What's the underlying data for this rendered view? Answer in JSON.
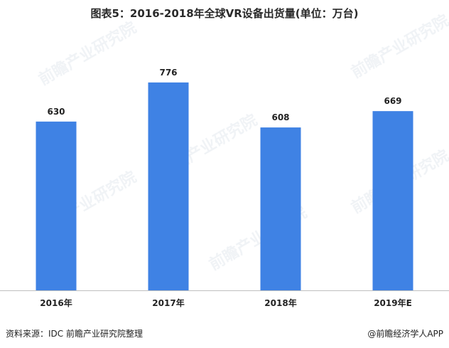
{
  "title": "图表5：2016-2018年全球VR设备出货量(单位：万台)",
  "footer": {
    "source": "资料来源：IDC 前瞻产业研究院整理",
    "brand": "@前瞻经济学人APP"
  },
  "watermark_text": "前瞻产业研究院",
  "colors": {
    "bar": "#3f82e4",
    "axis": "#bfbfbf"
  },
  "chart_data": {
    "type": "bar",
    "title": "图表5：2016-2018年全球VR设备出货量(单位：万台)",
    "categories": [
      "2016年",
      "2017年",
      "2018年",
      "2019年E"
    ],
    "values": [
      630,
      776,
      608,
      669
    ],
    "xlabel": "",
    "ylabel": "",
    "ylim": [
      0,
      850
    ],
    "grid": false,
    "legend": "none"
  }
}
